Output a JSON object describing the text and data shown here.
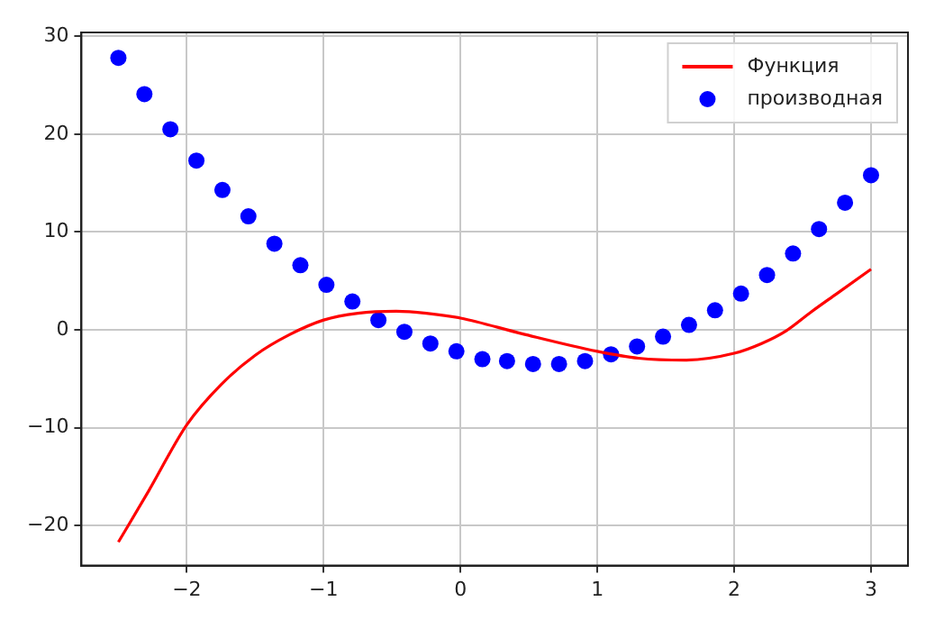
{
  "chart_data": {
    "type": "scatter",
    "xlim": [
      -2.77,
      3.27
    ],
    "ylim": [
      -24.1,
      30.4
    ],
    "xticks": [
      -2,
      -1,
      0,
      1,
      2,
      3
    ],
    "yticks": [
      -20,
      -10,
      0,
      10,
      20,
      30
    ],
    "grid": true,
    "legend": "top right",
    "series": [
      {
        "name": "Функция",
        "type": "line",
        "color": "#ff0000",
        "marker": "none",
        "line_style": "solid",
        "x": [
          -2.5,
          -2.28,
          -2,
          -1.75,
          -1.5,
          -1.25,
          -1,
          -0.75,
          -0.47,
          -0.25,
          0,
          0.45,
          1,
          1.3,
          1.64,
          2,
          2.2,
          2.38,
          2.56,
          2.75,
          3
        ],
        "values": [
          -21.7,
          -16.5,
          -9.7,
          -5.6,
          -2.6,
          -0.5,
          1.0,
          1.7,
          1.9,
          1.7,
          1.2,
          -0.4,
          -2.2,
          -2.9,
          -3.1,
          -2.4,
          -1.4,
          -0.1,
          1.8,
          3.7,
          6.2
        ]
      },
      {
        "name": "производная",
        "type": "scatter",
        "color": "#0000ff",
        "marker": "circle",
        "x": [
          -2.5,
          -2.31,
          -2.12,
          -1.93,
          -1.74,
          -1.55,
          -1.36,
          -1.17,
          -0.98,
          -0.79,
          -0.6,
          -0.41,
          -0.22,
          -0.03,
          0.16,
          0.34,
          0.53,
          0.72,
          0.91,
          1.1,
          1.29,
          1.48,
          1.67,
          1.86,
          2.05,
          2.24,
          2.43,
          2.62,
          2.81,
          3.0
        ],
        "values": [
          27.8,
          24.1,
          20.5,
          17.3,
          14.3,
          11.6,
          8.8,
          6.6,
          4.6,
          2.9,
          1.0,
          -0.2,
          -1.4,
          -2.2,
          -3.0,
          -3.2,
          -3.5,
          -3.5,
          -3.2,
          -2.5,
          -1.7,
          -0.7,
          0.5,
          2.0,
          3.7,
          5.6,
          7.8,
          10.3,
          13.0,
          15.8
        ]
      }
    ]
  }
}
